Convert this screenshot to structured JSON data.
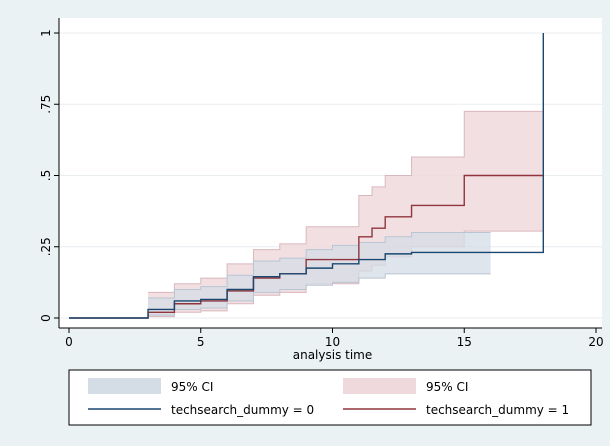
{
  "chart_data": {
    "type": "line",
    "xlabel": "analysis time",
    "ylabel": "",
    "xlim": [
      0,
      20
    ],
    "ylim": [
      0,
      1
    ],
    "x_ticks": [
      0,
      5,
      10,
      15,
      20
    ],
    "y_ticks": [
      0,
      0.25,
      0.5,
      0.75,
      1
    ],
    "y_tick_labels": [
      "0",
      ".25",
      ".5",
      ".75",
      "1"
    ],
    "grid": "horizontal",
    "legend_position": "bottom",
    "colors": {
      "series0_line": "#1a476f",
      "series0_band": "#d4dce6",
      "series1_line": "#90353b",
      "series1_band": "#efd9dc"
    },
    "series": [
      {
        "name": "techsearch_dummy = 0",
        "step_x": [
          0,
          3,
          4,
          5,
          6,
          7,
          8,
          9,
          10,
          11,
          12,
          13,
          16,
          18,
          18
        ],
        "step_y": [
          0,
          0.03,
          0.06,
          0.065,
          0.1,
          0.145,
          0.155,
          0.175,
          0.19,
          0.205,
          0.225,
          0.23,
          0.23,
          0.23,
          1.0
        ],
        "ci_x": [
          3,
          4,
          5,
          6,
          7,
          8,
          9,
          10,
          11,
          12,
          13,
          16
        ],
        "ci_lower": [
          0.01,
          0.03,
          0.035,
          0.06,
          0.09,
          0.1,
          0.115,
          0.125,
          0.14,
          0.155,
          0.155,
          0.155
        ],
        "ci_upper": [
          0.07,
          0.1,
          0.11,
          0.15,
          0.2,
          0.21,
          0.24,
          0.255,
          0.265,
          0.285,
          0.3,
          0.3
        ]
      },
      {
        "name": "techsearch_dummy = 1",
        "step_x": [
          0,
          3,
          4,
          5,
          6,
          7,
          8,
          9,
          11,
          11.5,
          12,
          13,
          15,
          18
        ],
        "step_y": [
          0,
          0.02,
          0.05,
          0.06,
          0.095,
          0.14,
          0.155,
          0.205,
          0.285,
          0.315,
          0.355,
          0.395,
          0.5,
          0.5
        ],
        "ci_x": [
          3,
          4,
          5,
          6,
          7,
          8,
          9,
          11,
          11.5,
          12,
          13,
          15,
          18
        ],
        "ci_lower": [
          0.005,
          0.02,
          0.025,
          0.05,
          0.08,
          0.09,
          0.12,
          0.165,
          0.185,
          0.215,
          0.25,
          0.305,
          0.305
        ],
        "ci_upper": [
          0.09,
          0.12,
          0.14,
          0.19,
          0.24,
          0.26,
          0.32,
          0.43,
          0.46,
          0.5,
          0.565,
          0.725,
          0.725
        ]
      }
    ],
    "legend": [
      {
        "label": "95% CI",
        "kind": "band",
        "series": 0
      },
      {
        "label": "95% CI",
        "kind": "band",
        "series": 1
      },
      {
        "label": "techsearch_dummy = 0",
        "kind": "line",
        "series": 0
      },
      {
        "label": "techsearch_dummy = 1",
        "kind": "line",
        "series": 1
      }
    ]
  }
}
